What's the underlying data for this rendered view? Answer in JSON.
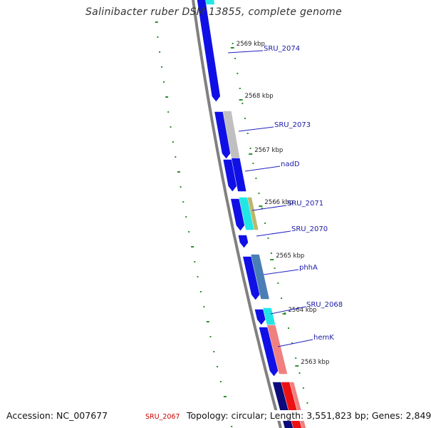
{
  "title": "Salinibacter ruber DSM 13855, complete genome",
  "footer": {
    "accession": "Accession: NC_007677",
    "stats": "Topology: circular; Length: 3,551,823 bp; Genes: 2,849",
    "cut_label": "SRU_2067"
  },
  "ticks": [
    {
      "label": "2569 kbp"
    },
    {
      "label": "2568 kbp"
    },
    {
      "label": "2567 kbp"
    },
    {
      "label": "2566 kbp"
    },
    {
      "label": "2565 kbp"
    },
    {
      "label": "2564 kbp"
    },
    {
      "label": "2563 kbp"
    }
  ],
  "gene_labels": [
    {
      "name": "SRU_2074"
    },
    {
      "name": "SRU_2073"
    },
    {
      "name": "nadD"
    },
    {
      "name": "SRU_2071"
    },
    {
      "name": "SRU_2070"
    },
    {
      "name": "phhA"
    },
    {
      "name": "SRU_2068"
    },
    {
      "name": "hemK"
    }
  ],
  "colors": {
    "backbone": "#808080",
    "tick_green": "#2f8f2f",
    "gene_blue": "#1010e6",
    "gene_grey": "#c0c0c0",
    "gene_cyan": "#22e6e6",
    "gene_khaki": "#bdb76b",
    "gene_steelblue": "#4a7fb5",
    "gene_salmon": "#f08080",
    "gene_red": "#ee1111",
    "gene_navy": "#0a0a7a",
    "label_blue": "#1a1aa6"
  }
}
